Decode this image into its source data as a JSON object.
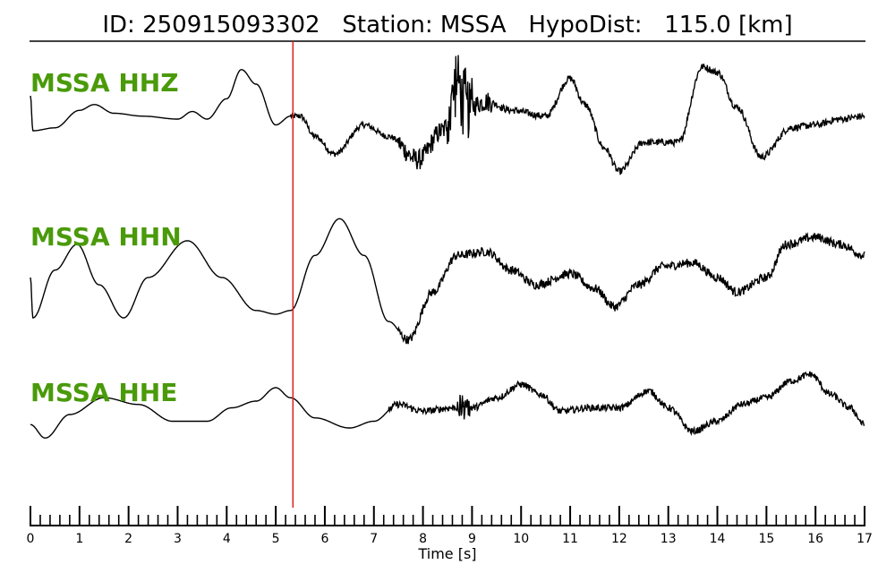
{
  "header": {
    "id_label": "ID:",
    "id_value": "250915093302",
    "station_label": "Station:",
    "station_value": "MSSA",
    "hypodist_label": "HypoDist:",
    "hypodist_value": "115.0",
    "hypodist_unit": "[km]"
  },
  "chart_data": {
    "type": "line",
    "title": "ID: 250915093302   Station: MSSA   HypoDist:   115.0 [km]",
    "xlabel": "Time [s]",
    "ylabel": "",
    "xlim": [
      0,
      17
    ],
    "major_ticks": [
      0,
      1,
      2,
      3,
      4,
      5,
      6,
      7,
      8,
      9,
      10,
      11,
      12,
      13,
      14,
      15,
      16,
      17
    ],
    "tick_labels": [
      "0",
      "1",
      "2",
      "3",
      "4",
      "5",
      "6",
      "7",
      "8",
      "9",
      "10",
      "11",
      "12",
      "13",
      "14",
      "15",
      "16",
      "17"
    ],
    "minor_tick_step": 0.2,
    "pick_time": 5.35,
    "pick_color": "#e0201b",
    "trace_color": "#000000",
    "label_color": "#4a9a0a",
    "series": [
      {
        "name": "MSSA HHZ",
        "noise": [
          0.0,
          0.0
        ],
        "points": [
          [
            0,
            0.6
          ],
          [
            0.05,
            0.0
          ],
          [
            0.5,
            0.05
          ],
          [
            1.0,
            0.35
          ],
          [
            1.3,
            0.45
          ],
          [
            1.7,
            0.3
          ],
          [
            2.3,
            0.25
          ],
          [
            3.0,
            0.2
          ],
          [
            3.3,
            0.33
          ],
          [
            3.6,
            0.2
          ],
          [
            4.0,
            0.55
          ],
          [
            4.3,
            1.05
          ],
          [
            4.6,
            0.8
          ],
          [
            5.0,
            0.1
          ],
          [
            5.3,
            0.25
          ],
          [
            5.5,
            0.25
          ],
          [
            5.8,
            -0.1
          ],
          [
            6.2,
            -0.4
          ],
          [
            6.8,
            0.1
          ],
          [
            7.3,
            -0.1
          ],
          [
            7.9,
            -0.5
          ],
          [
            8.4,
            0.0
          ],
          [
            8.7,
            0.8
          ],
          [
            8.9,
            0.4
          ],
          [
            9.3,
            0.5
          ],
          [
            9.8,
            0.35
          ],
          [
            10.5,
            0.25
          ],
          [
            11.0,
            0.9
          ],
          [
            11.3,
            0.45
          ],
          [
            11.7,
            -0.3
          ],
          [
            12.0,
            -0.7
          ],
          [
            12.5,
            -0.2
          ],
          [
            13.2,
            -0.2
          ],
          [
            13.7,
            1.1
          ],
          [
            14.0,
            1.0
          ],
          [
            14.4,
            0.4
          ],
          [
            14.9,
            -0.45
          ],
          [
            15.5,
            0.05
          ],
          [
            16.0,
            0.1
          ],
          [
            16.5,
            0.2
          ],
          [
            17.0,
            0.25
          ]
        ],
        "noise_bursts": [
          [
            5.3,
            7.5,
            0.05
          ],
          [
            7.5,
            9.4,
            0.18
          ],
          [
            8.5,
            9.0,
            0.55
          ],
          [
            9.4,
            17,
            0.06
          ]
        ]
      },
      {
        "name": "MSSA HHN",
        "points": [
          [
            0,
            0.55
          ],
          [
            0.05,
            0.0
          ],
          [
            0.5,
            0.65
          ],
          [
            0.95,
            1.0
          ],
          [
            1.4,
            0.45
          ],
          [
            1.9,
            0.0
          ],
          [
            2.4,
            0.55
          ],
          [
            3.2,
            1.05
          ],
          [
            3.9,
            0.55
          ],
          [
            4.6,
            0.1
          ],
          [
            5.0,
            0.05
          ],
          [
            5.3,
            0.1
          ],
          [
            5.8,
            0.85
          ],
          [
            6.3,
            1.35
          ],
          [
            6.8,
            0.85
          ],
          [
            7.3,
            -0.05
          ],
          [
            7.7,
            -0.3
          ],
          [
            8.2,
            0.35
          ],
          [
            8.7,
            0.85
          ],
          [
            9.3,
            0.9
          ],
          [
            9.8,
            0.65
          ],
          [
            10.3,
            0.45
          ],
          [
            11.0,
            0.6
          ],
          [
            11.5,
            0.4
          ],
          [
            11.9,
            0.15
          ],
          [
            12.4,
            0.45
          ],
          [
            12.9,
            0.7
          ],
          [
            13.5,
            0.75
          ],
          [
            14.0,
            0.55
          ],
          [
            14.4,
            0.35
          ],
          [
            15.0,
            0.55
          ],
          [
            15.4,
            1.0
          ],
          [
            16.0,
            1.1
          ],
          [
            16.5,
            1.0
          ],
          [
            17.0,
            0.85
          ]
        ],
        "noise_bursts": [
          [
            7.5,
            17,
            0.06
          ]
        ]
      },
      {
        "name": "MSSA HHE",
        "points": [
          [
            0,
            0.05
          ],
          [
            0.3,
            -0.15
          ],
          [
            0.8,
            0.2
          ],
          [
            1.5,
            0.45
          ],
          [
            2.2,
            0.35
          ],
          [
            2.9,
            0.1
          ],
          [
            3.6,
            0.1
          ],
          [
            4.1,
            0.3
          ],
          [
            4.6,
            0.4
          ],
          [
            5.0,
            0.6
          ],
          [
            5.3,
            0.45
          ],
          [
            5.8,
            0.15
          ],
          [
            6.5,
            0.0
          ],
          [
            7.0,
            0.1
          ],
          [
            7.5,
            0.35
          ],
          [
            8.0,
            0.25
          ],
          [
            8.6,
            0.3
          ],
          [
            9.0,
            0.3
          ],
          [
            9.5,
            0.45
          ],
          [
            10.0,
            0.65
          ],
          [
            10.4,
            0.5
          ],
          [
            10.8,
            0.25
          ],
          [
            11.4,
            0.3
          ],
          [
            12.0,
            0.3
          ],
          [
            12.6,
            0.55
          ],
          [
            13.0,
            0.3
          ],
          [
            13.5,
            -0.05
          ],
          [
            14.0,
            0.1
          ],
          [
            14.5,
            0.35
          ],
          [
            15.0,
            0.45
          ],
          [
            15.5,
            0.7
          ],
          [
            15.9,
            0.8
          ],
          [
            16.3,
            0.5
          ],
          [
            16.7,
            0.3
          ],
          [
            17.0,
            0.05
          ]
        ],
        "noise_bursts": [
          [
            7.3,
            17,
            0.05
          ],
          [
            8.7,
            9.0,
            0.2
          ]
        ]
      }
    ]
  }
}
